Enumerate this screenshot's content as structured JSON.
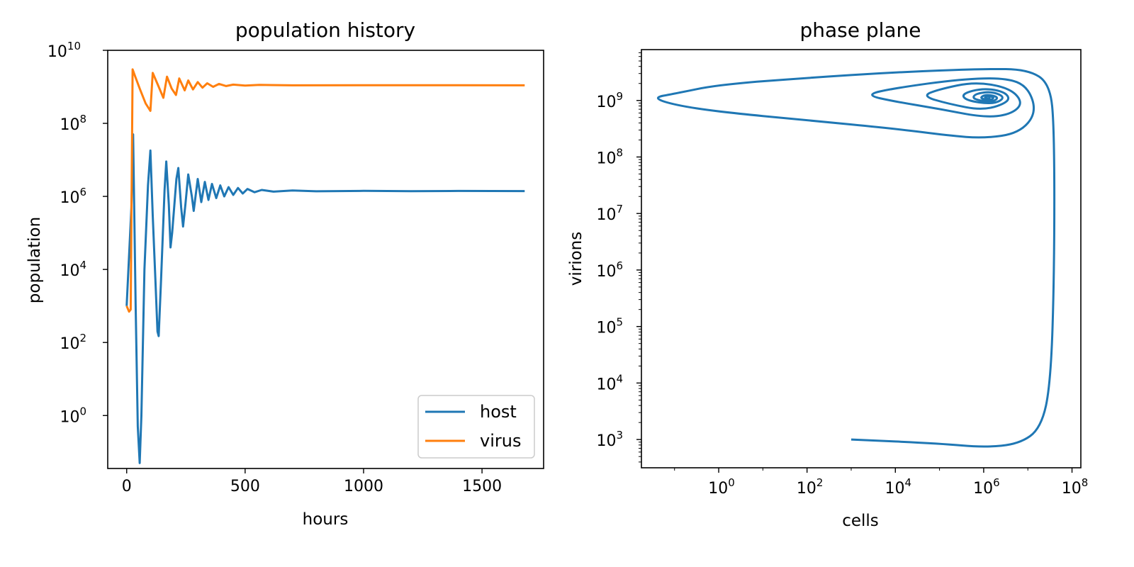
{
  "colors": {
    "host": "#1f77b4",
    "virus": "#ff7f0e",
    "axes": "#000000"
  },
  "chart_data": [
    {
      "type": "line",
      "title": "population history",
      "xlabel": "hours",
      "ylabel": "population",
      "xlim": [
        -80,
        1760
      ],
      "ylim_log10": [
        -1.45,
        10
      ],
      "yscale": "log",
      "xticks": [
        0,
        500,
        1000,
        1500
      ],
      "xtick_labels": [
        "0",
        "500",
        "1000",
        "1500"
      ],
      "yticks_log10": [
        0,
        2,
        4,
        6,
        8,
        10
      ],
      "ytick_base": "10",
      "ytick_exponents": [
        "0",
        "2",
        "4",
        "6",
        "8",
        "10"
      ],
      "grid": false,
      "legend_position": "lower-right",
      "series": [
        {
          "name": "host",
          "color_key": "host",
          "points": [
            [
              0,
              1000
            ],
            [
              20,
              500000
            ],
            [
              27,
              50000000
            ],
            [
              38,
              1000
            ],
            [
              47,
              0.5
            ],
            [
              55,
              0.05
            ],
            [
              62,
              1
            ],
            [
              75,
              10000
            ],
            [
              90,
              2000000
            ],
            [
              100,
              18000000
            ],
            [
              110,
              300000
            ],
            [
              122,
              4000
            ],
            [
              130,
              200
            ],
            [
              135,
              150
            ],
            [
              145,
              5000
            ],
            [
              160,
              1500000
            ],
            [
              167,
              9000000
            ],
            [
              178,
              600000
            ],
            [
              185,
              40000
            ],
            [
              192,
              100000
            ],
            [
              210,
              3000000
            ],
            [
              218,
              6000000
            ],
            [
              230,
              500000
            ],
            [
              238,
              150000
            ],
            [
              248,
              600000
            ],
            [
              260,
              4000000
            ],
            [
              275,
              1000000
            ],
            [
              283,
              400000
            ],
            [
              300,
              3000000
            ],
            [
              315,
              700000
            ],
            [
              330,
              2500000
            ],
            [
              345,
              800000
            ],
            [
              360,
              2200000
            ],
            [
              378,
              900000
            ],
            [
              395,
              2000000
            ],
            [
              412,
              1000000
            ],
            [
              430,
              1800000
            ],
            [
              450,
              1100000
            ],
            [
              470,
              1700000
            ],
            [
              490,
              1200000
            ],
            [
              510,
              1600000
            ],
            [
              540,
              1300000
            ],
            [
              570,
              1500000
            ],
            [
              620,
              1350000
            ],
            [
              700,
              1450000
            ],
            [
              800,
              1380000
            ],
            [
              1000,
              1420000
            ],
            [
              1200,
              1390000
            ],
            [
              1400,
              1410000
            ],
            [
              1680,
              1400000
            ]
          ]
        },
        {
          "name": "virus",
          "color_key": "virus",
          "points": [
            [
              0,
              1000
            ],
            [
              10,
              700
            ],
            [
              17,
              800
            ],
            [
              25,
              3000000000
            ],
            [
              35,
              2000000000
            ],
            [
              55,
              900000000
            ],
            [
              80,
              350000000
            ],
            [
              100,
              220000000
            ],
            [
              110,
              2400000000
            ],
            [
              130,
              1200000000
            ],
            [
              155,
              500000000
            ],
            [
              170,
              1900000000
            ],
            [
              190,
              900000000
            ],
            [
              208,
              600000000
            ],
            [
              222,
              1700000000
            ],
            [
              245,
              800000000
            ],
            [
              260,
              1500000000
            ],
            [
              280,
              850000000
            ],
            [
              300,
              1350000000
            ],
            [
              320,
              950000000
            ],
            [
              340,
              1250000000
            ],
            [
              365,
              1000000000
            ],
            [
              390,
              1200000000
            ],
            [
              420,
              1050000000
            ],
            [
              450,
              1150000000
            ],
            [
              500,
              1080000000
            ],
            [
              560,
              1130000000
            ],
            [
              700,
              1100000000
            ],
            [
              1000,
              1110000000
            ],
            [
              1400,
              1105000000
            ],
            [
              1680,
              1100000000
            ]
          ]
        }
      ]
    },
    {
      "type": "line",
      "title": "phase plane",
      "xlabel": "cells",
      "ylabel": "virions",
      "xscale": "log",
      "yscale": "log",
      "xlim_log10": [
        -1.75,
        8.2
      ],
      "ylim_log10": [
        2.5,
        9.9
      ],
      "xticks_log10": [
        0,
        2,
        4,
        6,
        8
      ],
      "xtick_base": "10",
      "xtick_exponents": [
        "0",
        "2",
        "4",
        "6",
        "8"
      ],
      "yticks_log10": [
        3,
        4,
        5,
        6,
        7,
        8,
        9
      ],
      "ytick_base": "10",
      "ytick_exponents": [
        "3",
        "4",
        "5",
        "6",
        "7",
        "8",
        "9"
      ],
      "grid": false,
      "series": [
        {
          "color_key": "host",
          "points_log10": [
            [
              3.0,
              3.0
            ],
            [
              5.0,
              2.93
            ],
            [
              6.0,
              2.86
            ],
            [
              6.8,
              2.92
            ],
            [
              7.3,
              3.2
            ],
            [
              7.52,
              4.0
            ],
            [
              7.6,
              6.0
            ],
            [
              7.6,
              8.5
            ],
            [
              7.5,
              9.3
            ],
            [
              7.0,
              9.55
            ],
            [
              6.0,
              9.56
            ],
            [
              4.0,
              9.5
            ],
            [
              2.0,
              9.4
            ],
            [
              0.0,
              9.28
            ],
            [
              -1.0,
              9.12
            ],
            [
              -1.5,
              9.05
            ],
            [
              -1.0,
              8.92
            ],
            [
              0.0,
              8.8
            ],
            [
              2.0,
              8.65
            ],
            [
              4.0,
              8.5
            ],
            [
              5.2,
              8.38
            ],
            [
              6.0,
              8.33
            ],
            [
              6.8,
              8.42
            ],
            [
              7.2,
              8.78
            ],
            [
              7.0,
              9.25
            ],
            [
              6.5,
              9.4
            ],
            [
              5.5,
              9.38
            ],
            [
              4.0,
              9.22
            ],
            [
              3.3,
              9.1
            ],
            [
              4.0,
              8.98
            ],
            [
              5.0,
              8.85
            ],
            [
              6.0,
              8.7
            ],
            [
              6.6,
              8.75
            ],
            [
              6.9,
              8.95
            ],
            [
              6.6,
              9.22
            ],
            [
              5.8,
              9.33
            ],
            [
              5.0,
              9.2
            ],
            [
              4.6,
              9.08
            ],
            [
              5.2,
              8.94
            ],
            [
              6.0,
              8.82
            ],
            [
              6.6,
              8.98
            ],
            [
              6.5,
              9.15
            ],
            [
              6.0,
              9.22
            ],
            [
              5.5,
              9.12
            ],
            [
              5.6,
              9.0
            ],
            [
              6.2,
              8.93
            ],
            [
              6.5,
              9.05
            ],
            [
              6.2,
              9.16
            ],
            [
              5.8,
              9.12
            ],
            [
              5.75,
              9.02
            ],
            [
              6.2,
              8.97
            ],
            [
              6.35,
              9.06
            ],
            [
              6.05,
              9.11
            ],
            [
              5.9,
              9.04
            ],
            [
              6.15,
              9.0
            ],
            [
              6.25,
              9.06
            ],
            [
              6.05,
              9.08
            ],
            [
              6.02,
              9.04
            ],
            [
              6.15,
              9.03
            ],
            [
              6.1,
              9.05
            ]
          ]
        }
      ]
    }
  ]
}
